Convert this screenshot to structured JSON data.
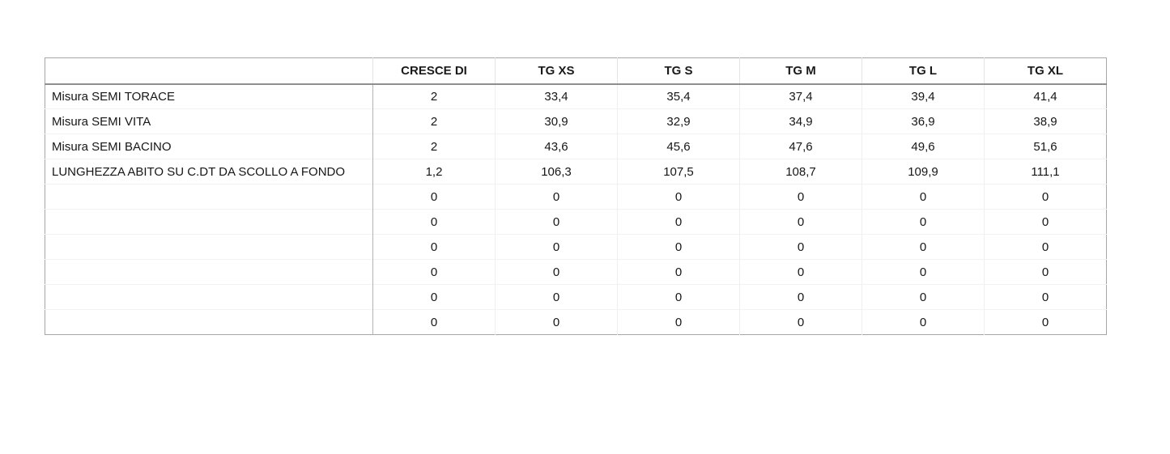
{
  "table": {
    "columns": [
      "",
      "CRESCE DI",
      "TG XS",
      "TG S",
      "TG M",
      "TG L",
      "TG XL"
    ],
    "rows": [
      {
        "label": "Misura SEMI TORACE",
        "values": [
          "2",
          "33,4",
          "35,4",
          "37,4",
          "39,4",
          "41,4"
        ]
      },
      {
        "label": "Misura SEMI VITA",
        "values": [
          "2",
          "30,9",
          "32,9",
          "34,9",
          "36,9",
          "38,9"
        ]
      },
      {
        "label": "Misura SEMI BACINO",
        "values": [
          "2",
          "43,6",
          "45,6",
          "47,6",
          "49,6",
          "51,6"
        ]
      },
      {
        "label": "LUNGHEZZA ABITO SU C.DT DA SCOLLO A FONDO",
        "values": [
          "1,2",
          "106,3",
          "107,5",
          "108,7",
          "109,9",
          "111,1"
        ]
      },
      {
        "label": "",
        "values": [
          "0",
          "0",
          "0",
          "0",
          "0",
          "0"
        ]
      },
      {
        "label": "",
        "values": [
          "0",
          "0",
          "0",
          "0",
          "0",
          "0"
        ]
      },
      {
        "label": "",
        "values": [
          "0",
          "0",
          "0",
          "0",
          "0",
          "0"
        ]
      },
      {
        "label": "",
        "values": [
          "0",
          "0",
          "0",
          "0",
          "0",
          "0"
        ]
      },
      {
        "label": "",
        "values": [
          "0",
          "0",
          "0",
          "0",
          "0",
          "0"
        ]
      },
      {
        "label": "",
        "values": [
          "0",
          "0",
          "0",
          "0",
          "0",
          "0"
        ]
      }
    ],
    "colors": {
      "outer_border": "#a6a6a6",
      "header_underline": "#8e8e8e",
      "label_column_separator": "#b3b3b3",
      "grid_line": "#efefef",
      "text": "#161616",
      "background": "#ffffff"
    }
  }
}
